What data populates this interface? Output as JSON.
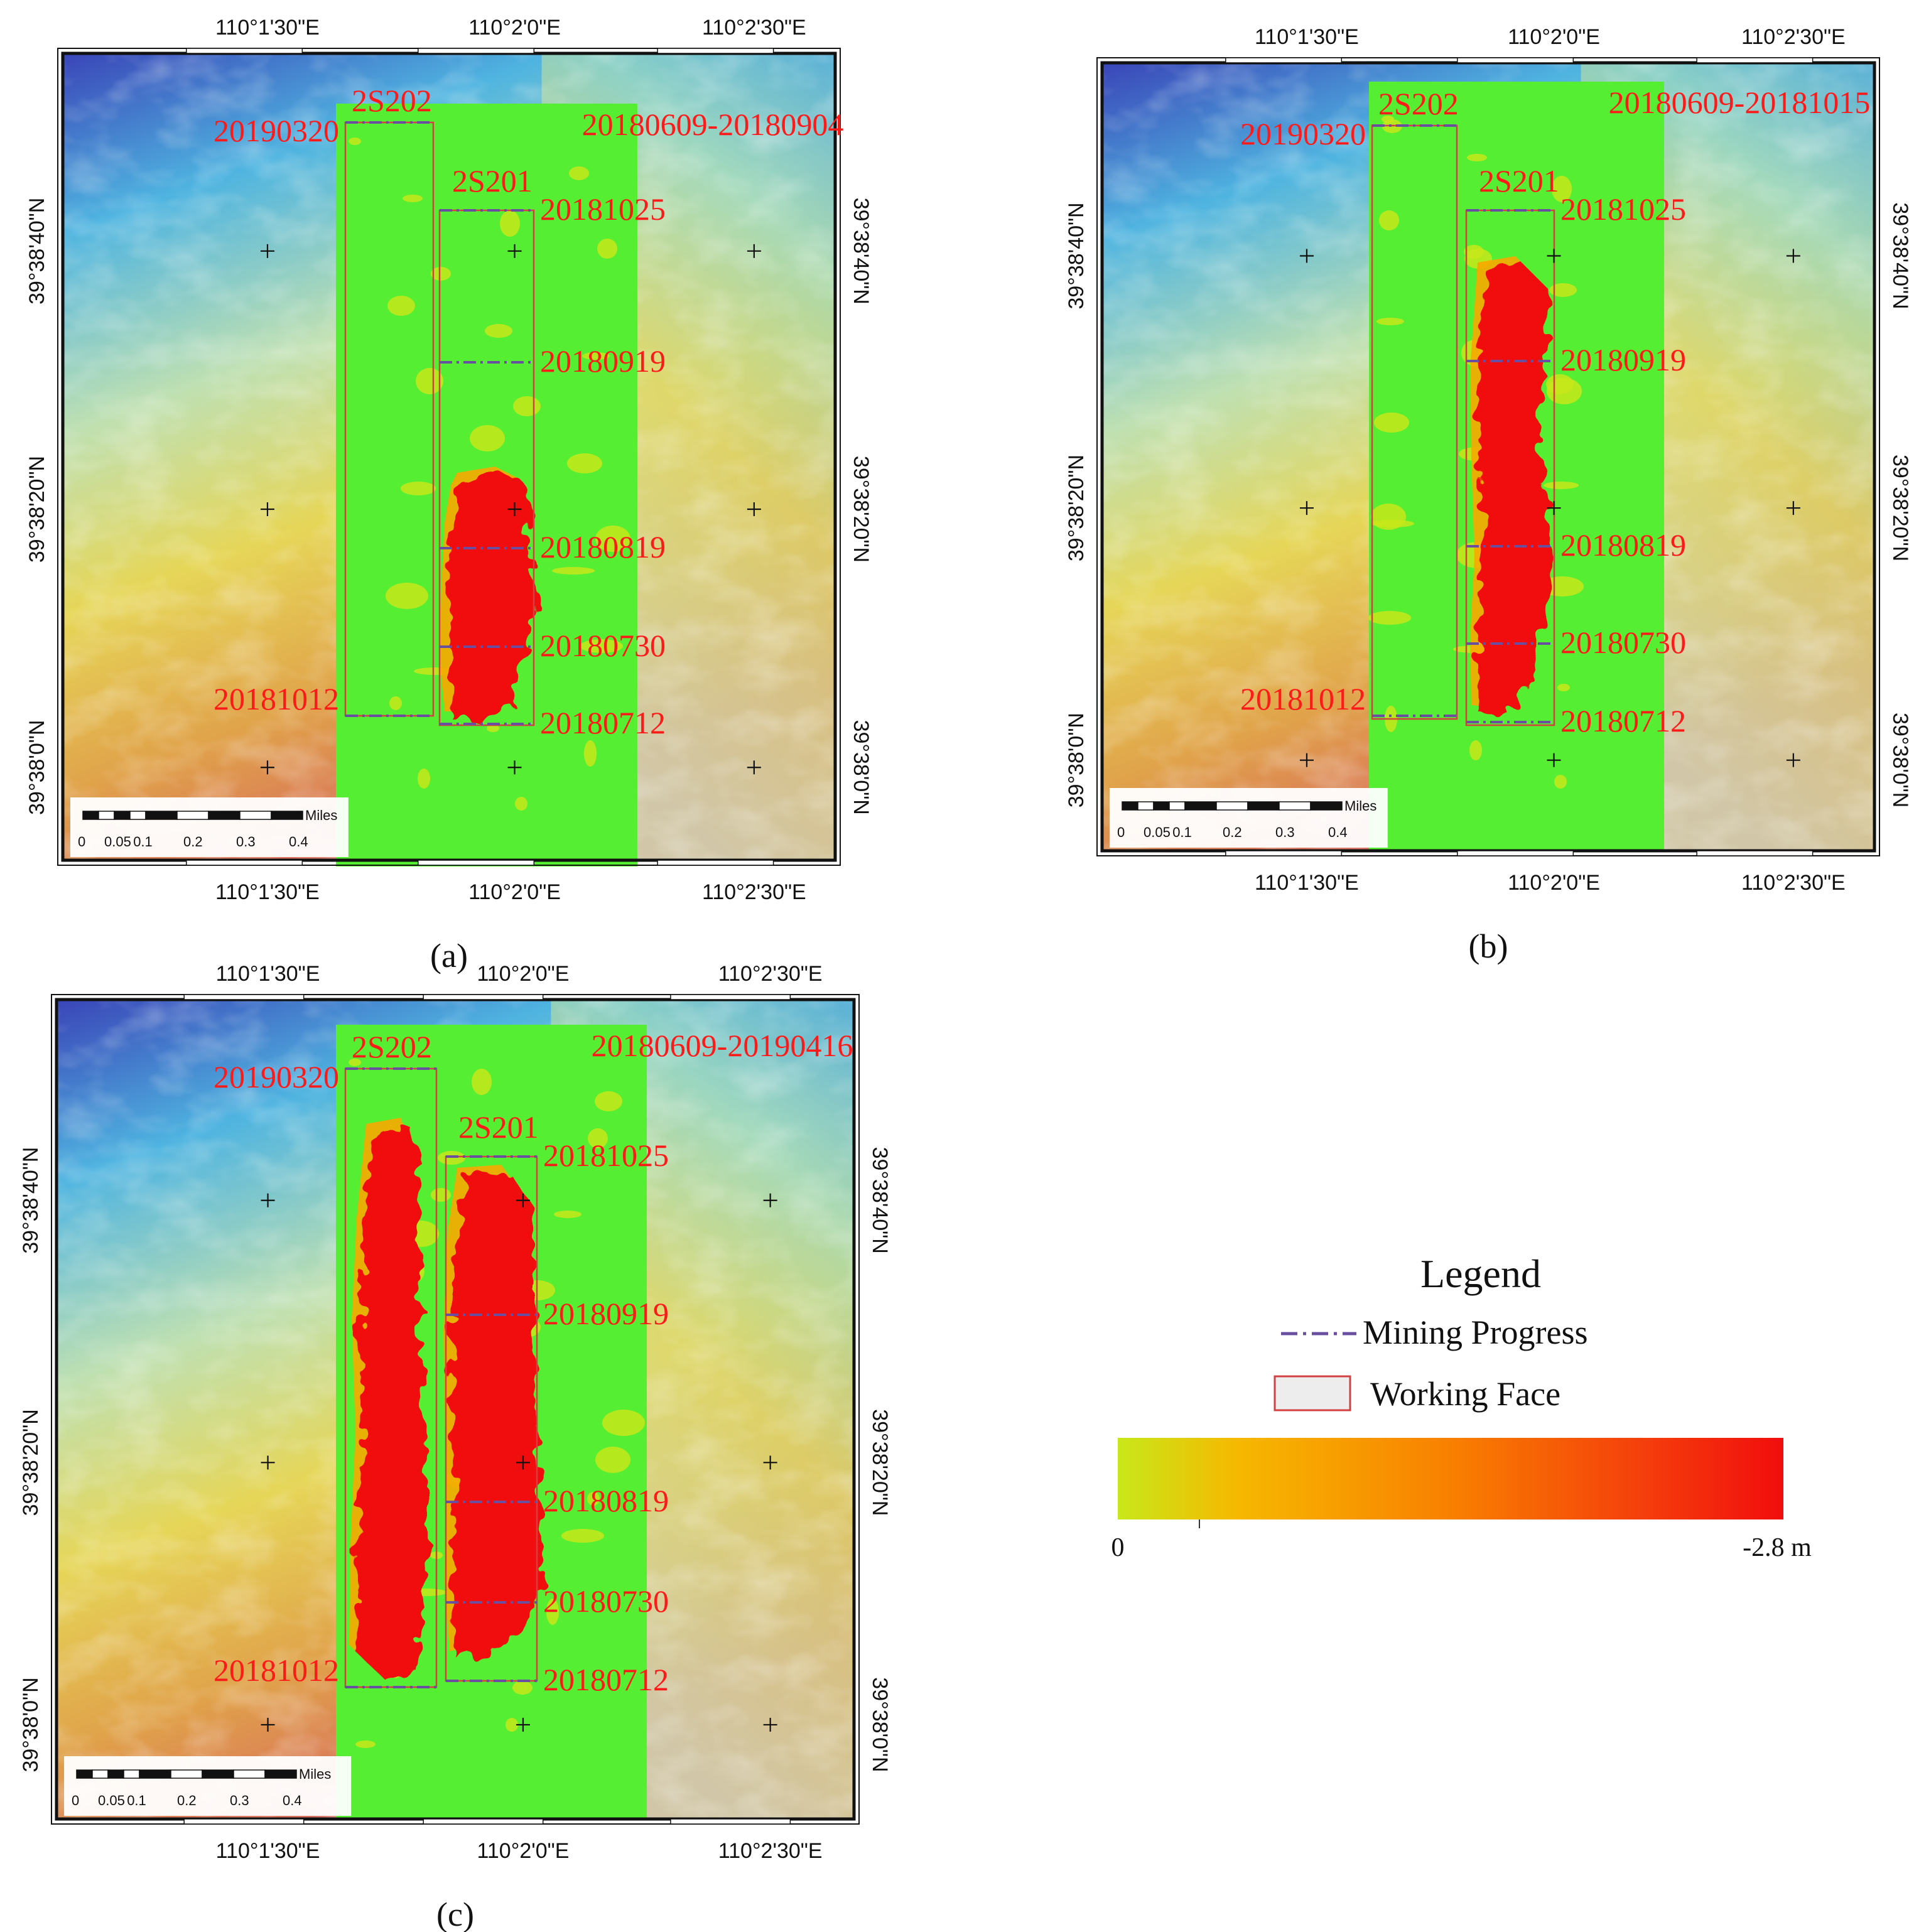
{
  "panels": [
    {
      "id": "a",
      "caption": "(a)",
      "period": "20180609-20180904",
      "faces": {
        "west": "2S202",
        "east": "2S201"
      },
      "dates": {
        "2S202_north": "20190320",
        "2S202_south": "20181012",
        "2S201_north": "20181025",
        "p1": "20180919",
        "p2": "20180819",
        "p3": "20180730",
        "2S201_south": "20180712"
      },
      "lon_ticks": [
        "110°1'30\"E",
        "110°2'0\"E",
        "110°2'30\"E"
      ],
      "lat_ticks": [
        "39°38'40\"N",
        "39°38'20\"N",
        "39°38'0\"N"
      ],
      "scale": {
        "unit": "Miles",
        "labels": [
          "0",
          "0.05",
          "0.1",
          "0.2",
          "0.3",
          "0.4"
        ]
      }
    },
    {
      "id": "b",
      "caption": "(b)",
      "period": "20180609-20181015",
      "faces": {
        "west": "2S202",
        "east": "2S201"
      },
      "dates": {
        "2S202_north": "20190320",
        "2S202_south": "20181012",
        "2S201_north": "20181025",
        "p1": "20180919",
        "p2": "20180819",
        "p3": "20180730",
        "2S201_south": "20180712"
      },
      "lon_ticks": [
        "110°1'30\"E",
        "110°2'0\"E",
        "110°2'30\"E"
      ],
      "lat_ticks": [
        "39°38'40\"N",
        "39°38'20\"N",
        "39°38'0\"N"
      ],
      "scale": {
        "unit": "Miles",
        "labels": [
          "0",
          "0.05",
          "0.1",
          "0.2",
          "0.3",
          "0.4"
        ]
      }
    },
    {
      "id": "c",
      "caption": "(c)",
      "period": "20180609-20190416",
      "faces": {
        "west": "2S202",
        "east": "2S201"
      },
      "dates": {
        "2S202_north": "20190320",
        "2S202_south": "20181012",
        "2S201_north": "20181025",
        "p1": "20180919",
        "p2": "20180819",
        "p3": "20180730",
        "2S201_south": "20180712"
      },
      "lon_ticks": [
        "110°1'30\"E",
        "110°2'0\"E",
        "110°2'30\"E"
      ],
      "lat_ticks": [
        "39°38'40\"N",
        "39°38'20\"N",
        "39°38'0\"N"
      ],
      "scale": {
        "unit": "Miles",
        "labels": [
          "0",
          "0.05",
          "0.1",
          "0.2",
          "0.3",
          "0.4"
        ]
      }
    }
  ],
  "legend": {
    "title": "Legend",
    "mining_progress": "Mining Progress",
    "working_face": "Working Face",
    "colorbar": {
      "min_label": "0",
      "max_label": "-2.8 m",
      "min_value": 0,
      "max_value": -2.8,
      "unit": "m"
    }
  },
  "colors": {
    "subsidence_low": "#c8e81a",
    "subsidence_mid": "#f8a800",
    "subsidence_high": "#f10d0d",
    "stable_green": "#55ee33",
    "progress_line": "#6a4fa0",
    "face_outline": "#d44040",
    "label_red": "#ff1a1a"
  }
}
